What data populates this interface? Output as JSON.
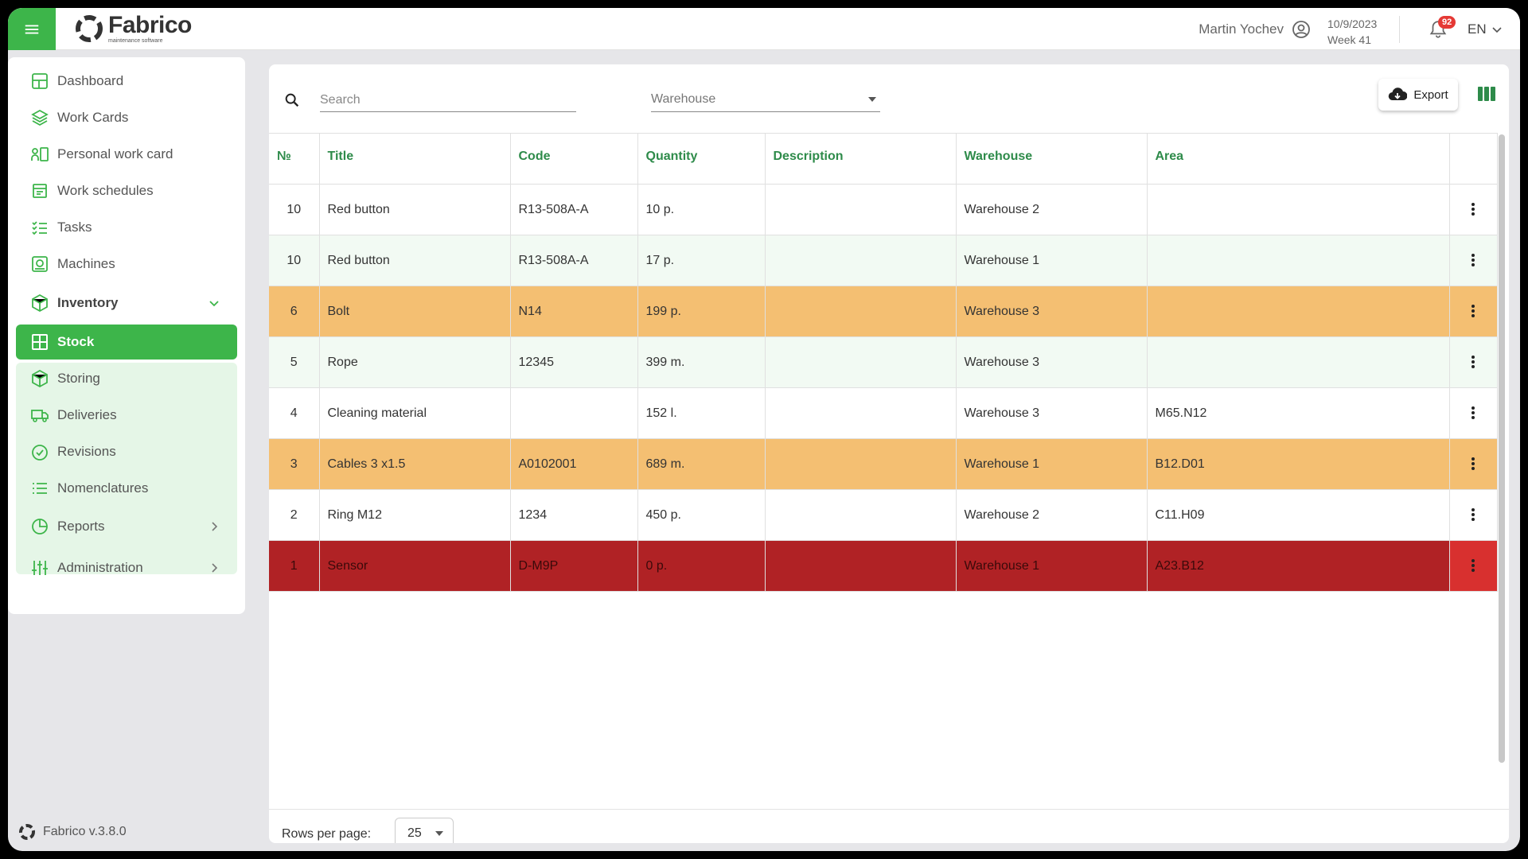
{
  "header": {
    "logo_name": "Fabrico",
    "logo_sub": "maintenance software",
    "user_name": "Martin Yochev",
    "date": "10/9/2023",
    "week": "Week 41",
    "notification_count": "92",
    "language": "EN"
  },
  "sidebar": {
    "items": [
      {
        "label": "Dashboard",
        "icon": "dashboard-icon"
      },
      {
        "label": "Work Cards",
        "icon": "layers-icon"
      },
      {
        "label": "Personal work card",
        "icon": "person-card-icon"
      },
      {
        "label": "Work schedules",
        "icon": "schedule-icon"
      },
      {
        "label": "Tasks",
        "icon": "tasks-icon"
      },
      {
        "label": "Machines",
        "icon": "machine-icon"
      },
      {
        "label": "Inventory",
        "icon": "inventory-icon"
      },
      {
        "label": "Stock",
        "icon": "stock-icon"
      },
      {
        "label": "Storing",
        "icon": "box-icon"
      },
      {
        "label": "Deliveries",
        "icon": "truck-icon"
      },
      {
        "label": "Revisions",
        "icon": "check-circle-icon"
      },
      {
        "label": "Nomenclatures",
        "icon": "list-icon"
      },
      {
        "label": "Reports",
        "icon": "pie-chart-icon"
      },
      {
        "label": "Administration",
        "icon": "sliders-icon"
      }
    ],
    "version": "Fabrico v.3.8.0"
  },
  "toolbar": {
    "search_placeholder": "Search",
    "warehouse_placeholder": "Warehouse",
    "export_label": "Export"
  },
  "table": {
    "columns": [
      "№",
      "Title",
      "Code",
      "Quantity",
      "Description",
      "Warehouse",
      "Area"
    ],
    "rows": [
      {
        "no": "10",
        "title": "Red button",
        "code": "R13-508A-A",
        "quantity": "10 p.",
        "description": "",
        "warehouse": "Warehouse 2",
        "area": "",
        "status": "normal"
      },
      {
        "no": "10",
        "title": "Red button",
        "code": "R13-508A-A",
        "quantity": "17 p.",
        "description": "",
        "warehouse": "Warehouse 1",
        "area": "",
        "status": "normal"
      },
      {
        "no": "6",
        "title": "Bolt",
        "code": "N14",
        "quantity": "199 p.",
        "description": "",
        "warehouse": "Warehouse 3",
        "area": "",
        "status": "low"
      },
      {
        "no": "5",
        "title": "Rope",
        "code": "12345",
        "quantity": "399 m.",
        "description": "",
        "warehouse": "Warehouse 3",
        "area": "",
        "status": "normal"
      },
      {
        "no": "4",
        "title": "Cleaning material",
        "code": "",
        "quantity": "152 l.",
        "description": "",
        "warehouse": "Warehouse 3",
        "area": "M65.N12",
        "status": "normal"
      },
      {
        "no": "3",
        "title": "Cables 3 x1.5",
        "code": "A0102001",
        "quantity": "689 m.",
        "description": "",
        "warehouse": "Warehouse 1",
        "area": "B12.D01",
        "status": "low"
      },
      {
        "no": "2",
        "title": "Ring M12",
        "code": "1234",
        "quantity": "450 p.",
        "description": "",
        "warehouse": "Warehouse 2",
        "area": "C11.H09",
        "status": "normal"
      },
      {
        "no": "1",
        "title": "Sensor",
        "code": "D-M9P",
        "quantity": "0 p.",
        "description": "",
        "warehouse": "Warehouse 1",
        "area": "A23.B12",
        "status": "empty"
      }
    ]
  },
  "footer": {
    "rows_per_page_label": "Rows per page:",
    "rows_per_page_value": "25"
  },
  "colors": {
    "brand_green": "#3db54a",
    "header_green": "#2e8b4a",
    "low_stock": "#f4bf72",
    "empty_stock": "#b02225"
  }
}
